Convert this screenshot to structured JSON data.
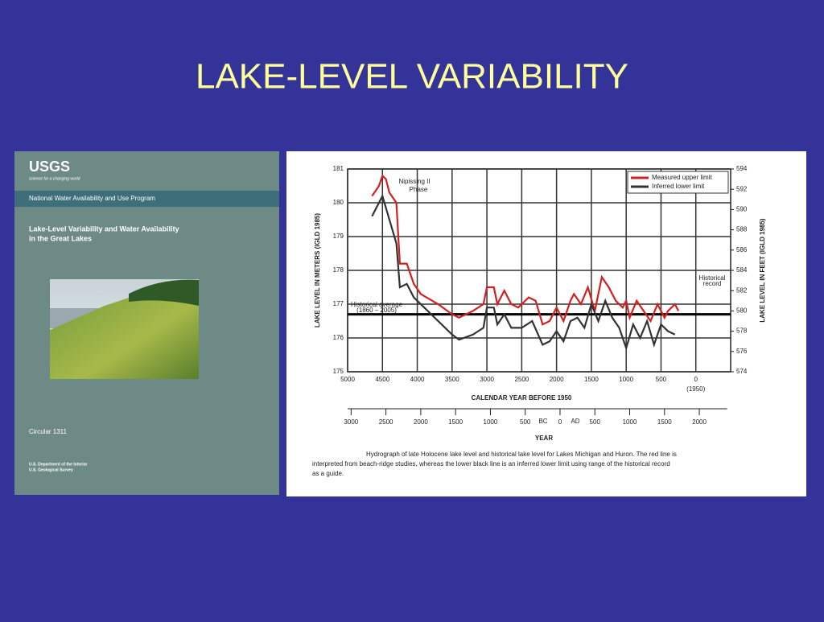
{
  "title": "LAKE-LEVEL VARIABILITY",
  "cover": {
    "logo": "USGS",
    "tagline": "science for a changing world",
    "program": "National Water Availability and Use Program",
    "book_title": [
      "Lake-Level Variability and Water Availability",
      "in the Great Lakes"
    ],
    "series": "Circular 1311",
    "publisher": [
      "U.S. Department of the Interior",
      "U.S. Geological Survey"
    ]
  },
  "chart_data": {
    "type": "line",
    "xlabel": "CALENDAR YEAR BEFORE 1950",
    "ylabel": "LAKE LEVEL IN METERS (IGLD 1985)",
    "y2label": "LAKE LEVEL IN FEET (IGLD 1985)",
    "xlim": [
      5000,
      -500
    ],
    "xticks": [
      5000,
      4500,
      4000,
      3500,
      3000,
      2500,
      2000,
      1500,
      1000,
      500,
      0
    ],
    "ylim": [
      175,
      181
    ],
    "yticks": [
      175,
      176,
      177,
      178,
      179,
      180,
      181
    ],
    "y2lim": [
      574,
      594
    ],
    "y2ticks": [
      574,
      576,
      578,
      580,
      582,
      584,
      586,
      588,
      590,
      592,
      594
    ],
    "x2label": "YEAR",
    "x2ticks": [
      {
        "value": 4950,
        "label": "3000"
      },
      {
        "value": 4450,
        "label": "2500"
      },
      {
        "value": 3950,
        "label": "2000"
      },
      {
        "value": 3450,
        "label": "1500"
      },
      {
        "value": 2950,
        "label": "1000"
      },
      {
        "value": 2450,
        "label": "500"
      },
      {
        "value": 1950,
        "label": "0"
      },
      {
        "value": 1450,
        "label": "500"
      },
      {
        "value": 950,
        "label": "1000"
      },
      {
        "value": 450,
        "label": "1500"
      },
      {
        "value": -50,
        "label": "2000"
      }
    ],
    "era_labels": [
      "BC",
      "AD"
    ],
    "zero_note": "(1950)",
    "grid": true,
    "legend": "upper right",
    "historical_average": {
      "value": 176.7,
      "label": [
        "Historical average",
        "(1860 – 2005)"
      ]
    },
    "annotations": [
      [
        "Nipissing II",
        "Phase"
      ],
      [
        "Historical",
        "record"
      ]
    ],
    "caption": [
      "Hydrograph of late Holocene lake level and historical lake level for Lakes Michigan and Huron. The red line is",
      "interpreted from beach-ridge studies, whereas the lower black line is an inferred lower limit using range of the historical record",
      "as a guide."
    ],
    "series": [
      {
        "name": "Measured upper limit",
        "color": "#d42020",
        "x": [
          4650,
          4550,
          4500,
          4450,
          4400,
          4300,
          4250,
          4150,
          4050,
          3950,
          3700,
          3500,
          3400,
          3200,
          3050,
          3000,
          2900,
          2850,
          2750,
          2650,
          2550,
          2400,
          2300,
          2200,
          2100,
          2000,
          1900,
          1800,
          1750,
          1650,
          1550,
          1450,
          1350,
          1250,
          1150,
          1050,
          1000,
          950,
          850,
          750,
          650,
          550,
          450,
          400,
          300,
          250
        ],
        "values": [
          180.2,
          180.5,
          180.8,
          180.7,
          180.3,
          180.0,
          178.2,
          178.2,
          177.6,
          177.3,
          177.0,
          176.7,
          176.6,
          176.8,
          177.0,
          177.5,
          177.5,
          177.0,
          177.4,
          177.0,
          176.9,
          177.2,
          177.1,
          176.4,
          176.5,
          176.9,
          176.5,
          177.1,
          177.3,
          177.0,
          177.5,
          176.8,
          177.8,
          177.5,
          177.1,
          176.9,
          177.1,
          176.6,
          177.1,
          176.8,
          176.5,
          177.0,
          176.6,
          176.8,
          177.0,
          176.8
        ]
      },
      {
        "name": "Inferred lower limit",
        "color": "#333333",
        "x": [
          4650,
          4500,
          4400,
          4300,
          4250,
          4150,
          4050,
          3900,
          3700,
          3500,
          3400,
          3200,
          3050,
          3000,
          2900,
          2850,
          2750,
          2650,
          2500,
          2350,
          2200,
          2100,
          2000,
          1900,
          1800,
          1700,
          1600,
          1500,
          1400,
          1300,
          1200,
          1100,
          1000,
          900,
          800,
          700,
          600,
          500,
          400,
          300
        ],
        "values": [
          179.6,
          180.2,
          179.5,
          178.8,
          177.5,
          177.6,
          177.2,
          176.9,
          176.5,
          176.1,
          175.95,
          176.1,
          176.3,
          176.9,
          176.9,
          176.4,
          176.7,
          176.3,
          176.3,
          176.5,
          175.8,
          175.9,
          176.2,
          175.9,
          176.5,
          176.6,
          176.3,
          177.0,
          176.5,
          177.1,
          176.6,
          176.3,
          175.7,
          176.4,
          176.0,
          176.5,
          175.8,
          176.4,
          176.2,
          176.1
        ]
      }
    ]
  }
}
